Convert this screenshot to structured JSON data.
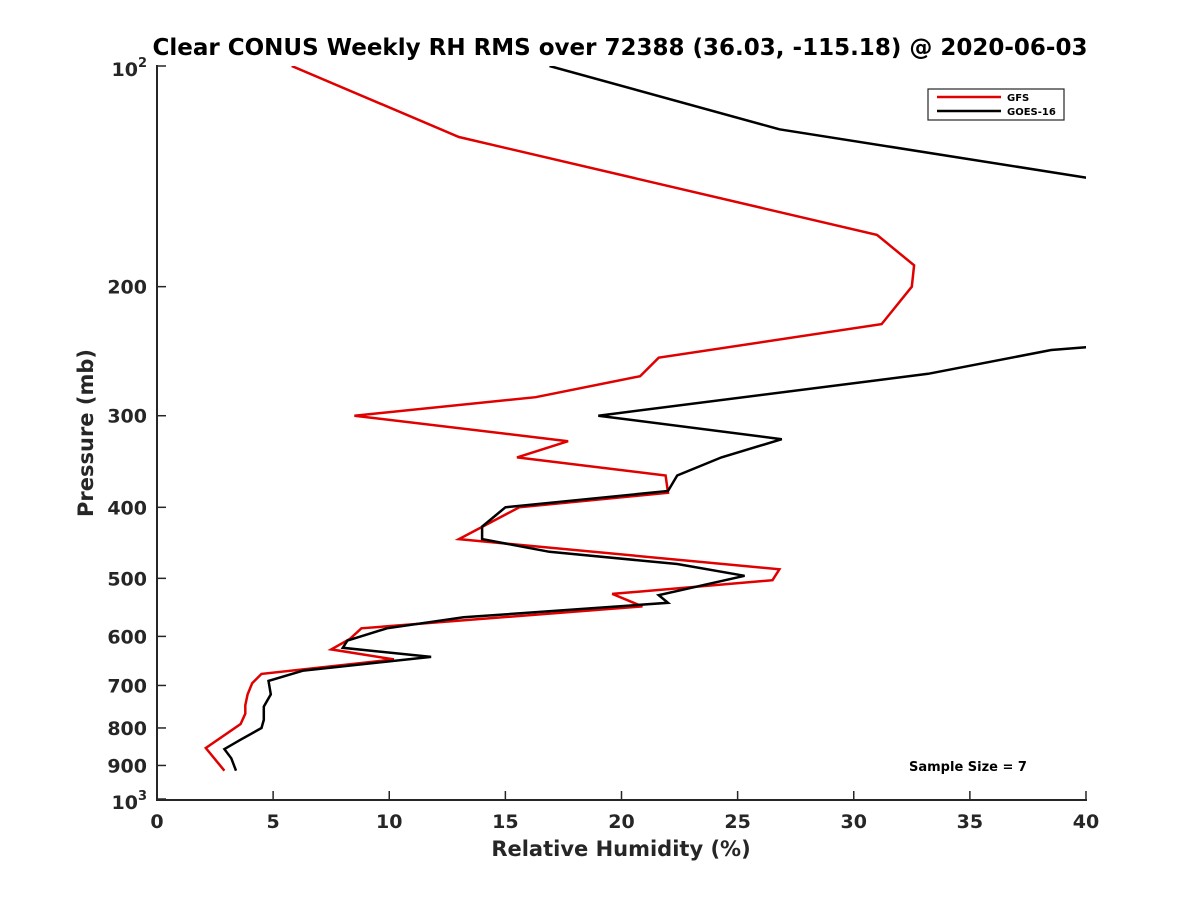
{
  "chart_data": {
    "type": "line",
    "title": "Clear CONUS Weekly RH RMS over 72388 (36.03, -115.18) @ 2020-06-03",
    "xlabel": "Relative Humidity (%)",
    "ylabel": "Pressure (mb)",
    "xlim": [
      0,
      40
    ],
    "ylim": [
      100,
      1000
    ],
    "y_scale": "log",
    "y_reversed": true,
    "grid": false,
    "x_ticks": [
      0,
      5,
      10,
      15,
      20,
      25,
      30,
      35,
      40
    ],
    "x_tick_labels": [
      "0",
      "5",
      "10",
      "15",
      "20",
      "25",
      "30",
      "35",
      "40"
    ],
    "y_ticks": [
      200,
      300,
      400,
      500,
      600,
      700,
      800,
      900
    ],
    "y_tick_labels": [
      "200",
      "300",
      "400",
      "500",
      "600",
      "700",
      "800",
      "900"
    ],
    "y_end_labels": {
      "top": {
        "base": "10",
        "exp": "2",
        "value": 100
      },
      "bottom": {
        "base": "10",
        "exp": "3",
        "value": 1000
      }
    },
    "legend_position": "top-right",
    "annotation": "Sample Size = 7",
    "series": [
      {
        "name": "GFS",
        "color": "#e00000",
        "points": [
          [
            5.8,
            100
          ],
          [
            13.0,
            125
          ],
          [
            31.0,
            170
          ],
          [
            32.6,
            187
          ],
          [
            32.5,
            200
          ],
          [
            31.2,
            225
          ],
          [
            21.6,
            250
          ],
          [
            20.8,
            265
          ],
          [
            16.3,
            283
          ],
          [
            8.5,
            300
          ],
          [
            17.7,
            325
          ],
          [
            15.5,
            342
          ],
          [
            21.9,
            362
          ],
          [
            22.0,
            382
          ],
          [
            15.6,
            400
          ],
          [
            13.0,
            442
          ],
          [
            26.8,
            486
          ],
          [
            26.5,
            503
          ],
          [
            19.6,
            525
          ],
          [
            20.9,
            546
          ],
          [
            8.8,
            585
          ],
          [
            8.3,
            605
          ],
          [
            7.5,
            625
          ],
          [
            10.2,
            645
          ],
          [
            4.5,
            675
          ],
          [
            4.1,
            695
          ],
          [
            3.9,
            720
          ],
          [
            3.8,
            745
          ],
          [
            3.8,
            765
          ],
          [
            3.6,
            790
          ],
          [
            2.1,
            852
          ],
          [
            2.9,
            915
          ]
        ]
      },
      {
        "name": "GOES-16",
        "color": "#000000",
        "points": [
          [
            16.9,
            100
          ],
          [
            26.8,
            122
          ],
          [
            40.0,
            142
          ],
          [
            41.5,
            150
          ],
          [
            41.5,
            233
          ],
          [
            40.0,
            242
          ],
          [
            38.5,
            244
          ],
          [
            33.2,
            263
          ],
          [
            19.0,
            300
          ],
          [
            26.9,
            323
          ],
          [
            24.3,
            342
          ],
          [
            22.4,
            362
          ],
          [
            22.0,
            380
          ],
          [
            15.0,
            400
          ],
          [
            14.0,
            425
          ],
          [
            14.0,
            442
          ],
          [
            16.9,
            460
          ],
          [
            22.4,
            478
          ],
          [
            25.3,
            496
          ],
          [
            21.6,
            527
          ],
          [
            22.0,
            540
          ],
          [
            13.2,
            565
          ],
          [
            9.9,
            585
          ],
          [
            8.2,
            608
          ],
          [
            8.0,
            622
          ],
          [
            11.8,
            640
          ],
          [
            6.3,
            668
          ],
          [
            4.8,
            690
          ],
          [
            4.9,
            720
          ],
          [
            4.6,
            748
          ],
          [
            4.6,
            780
          ],
          [
            4.5,
            800
          ],
          [
            3.6,
            830
          ],
          [
            2.9,
            855
          ],
          [
            3.2,
            880
          ],
          [
            3.4,
            915
          ]
        ]
      }
    ]
  }
}
